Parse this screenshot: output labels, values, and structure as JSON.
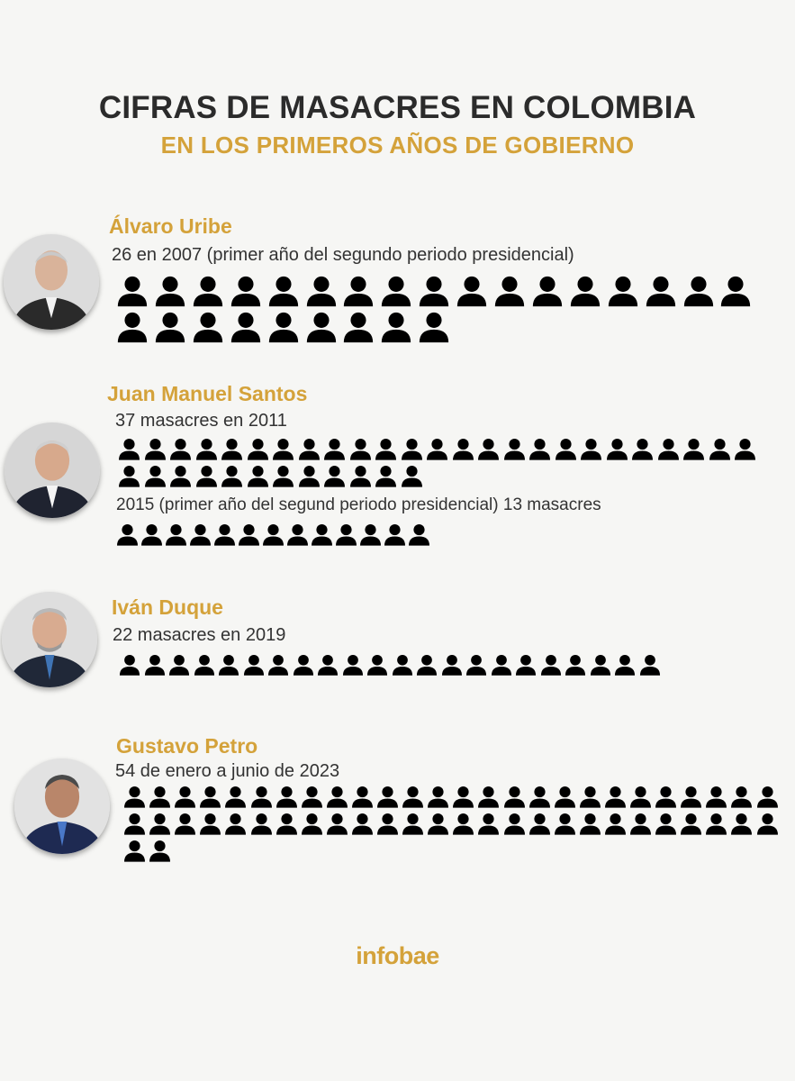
{
  "title": "CIFRAS DE MASACRES EN COLOMBIA",
  "subtitle": "EN LOS PRIMEROS AÑOS DE GOBIERNO",
  "source": "infobae",
  "colors": {
    "accent": "#d4a23a",
    "title": "#2b2b2b",
    "icon": "#000000",
    "background": "#f6f6f4"
  },
  "chart_data": {
    "type": "pictogram",
    "title": "CIFRAS DE MASACRES EN COLOMBIA",
    "subtitle": "EN LOS PRIMEROS AÑOS DE GOBIERNO",
    "unit_icon": "person-icon",
    "series": [
      {
        "name": "Álvaro Uribe",
        "entries": [
          {
            "label": "26 en 2007 (primer año del segundo periodo presidencial)",
            "year": 2007,
            "value": 26
          }
        ]
      },
      {
        "name": "Juan Manuel Santos",
        "entries": [
          {
            "label": "37 masacres en 2011",
            "year": 2011,
            "value": 37
          },
          {
            "label": "2015 (primer año del segund periodo presidencial) 13 masacres",
            "year": 2015,
            "value": 13
          }
        ]
      },
      {
        "name": "Iván Duque",
        "entries": [
          {
            "label": "22 masacres en 2019",
            "year": 2019,
            "value": 22
          }
        ]
      },
      {
        "name": "Gustavo Petro",
        "entries": [
          {
            "label": "54 de enero a junio de 2023",
            "year": 2023,
            "value": 54
          }
        ]
      }
    ]
  }
}
